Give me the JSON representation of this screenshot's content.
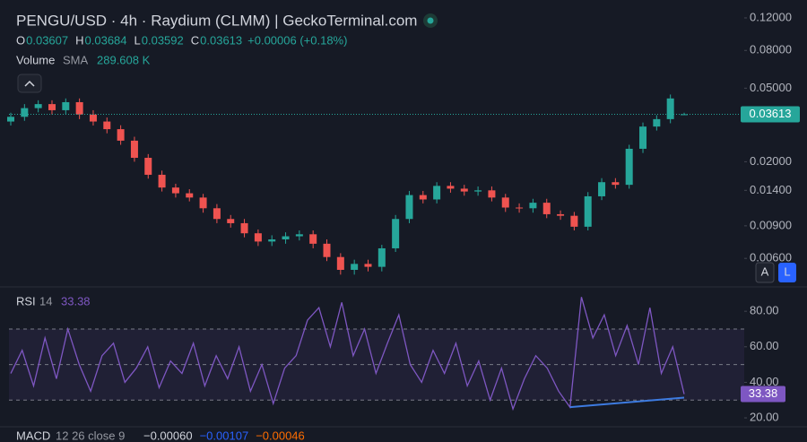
{
  "chart_data": [
    {
      "type": "candlestick",
      "title": "PENGU/USD · 4h · Raydium (CLMM) | GeckoTerminal.com",
      "legend_labels": [
        "O",
        "H",
        "L",
        "C"
      ],
      "change_label": "+0.00006 (+0.18%)",
      "volume": {
        "title": "Volume",
        "indicator": "SMA",
        "value_label": "289.608 K"
      },
      "open": [
        0.033,
        0.035,
        0.039,
        0.041,
        0.038,
        0.042,
        0.036,
        0.033,
        0.03,
        0.026,
        0.021,
        0.017,
        0.0145,
        0.0135,
        0.0128,
        0.0112,
        0.0098,
        0.0093,
        0.0082,
        0.0074,
        0.0076,
        0.0079,
        0.0081,
        0.0072,
        0.0061,
        0.0052,
        0.0056,
        0.0054,
        0.0068,
        0.0098,
        0.0132,
        0.0125,
        0.0148,
        0.0143,
        0.0138,
        0.014,
        0.0128,
        0.0113,
        0.0112,
        0.012,
        0.0104,
        0.0102,
        0.0089,
        0.013,
        0.0155,
        0.015,
        0.0235,
        0.031,
        0.034,
        0.03607
      ],
      "high": [
        0.0368,
        0.041,
        0.043,
        0.043,
        0.044,
        0.044,
        0.038,
        0.0347,
        0.0315,
        0.0273,
        0.022,
        0.0179,
        0.0152,
        0.0142,
        0.0134,
        0.0118,
        0.0103,
        0.0098,
        0.0086,
        0.008,
        0.0083,
        0.0085,
        0.0085,
        0.0076,
        0.0064,
        0.0059,
        0.0059,
        0.0071,
        0.0103,
        0.0139,
        0.0139,
        0.0155,
        0.0155,
        0.015,
        0.0147,
        0.0147,
        0.0134,
        0.0119,
        0.0126,
        0.0126,
        0.0109,
        0.0107,
        0.0137,
        0.0163,
        0.0163,
        0.0247,
        0.0326,
        0.0357,
        0.0462,
        0.03684
      ],
      "low": [
        0.0314,
        0.0333,
        0.037,
        0.036,
        0.036,
        0.034,
        0.0314,
        0.0285,
        0.0247,
        0.02,
        0.0162,
        0.0138,
        0.0128,
        0.0122,
        0.0106,
        0.0093,
        0.0088,
        0.0078,
        0.007,
        0.007,
        0.0072,
        0.0075,
        0.0068,
        0.0058,
        0.0049,
        0.0049,
        0.0051,
        0.0051,
        0.0065,
        0.0093,
        0.0119,
        0.0119,
        0.0136,
        0.0131,
        0.0131,
        0.0122,
        0.0107,
        0.0106,
        0.0106,
        0.0099,
        0.0097,
        0.0085,
        0.0085,
        0.0124,
        0.0143,
        0.0143,
        0.0223,
        0.0295,
        0.0323,
        0.03592
      ],
      "close": [
        0.035,
        0.039,
        0.041,
        0.038,
        0.042,
        0.036,
        0.033,
        0.03,
        0.026,
        0.021,
        0.017,
        0.0145,
        0.0135,
        0.0128,
        0.0112,
        0.0098,
        0.0093,
        0.0082,
        0.0074,
        0.0076,
        0.0079,
        0.0081,
        0.0072,
        0.0061,
        0.0052,
        0.0056,
        0.0054,
        0.0068,
        0.0098,
        0.0132,
        0.0125,
        0.0148,
        0.0143,
        0.0138,
        0.014,
        0.0128,
        0.0113,
        0.0112,
        0.012,
        0.0104,
        0.0102,
        0.0089,
        0.013,
        0.0155,
        0.015,
        0.0235,
        0.031,
        0.034,
        0.044,
        0.03613
      ],
      "up_color": "#26a69a",
      "down_color": "#ef5350",
      "log_scale": true,
      "last_price_line": true,
      "ylim": [
        0.0043,
        0.15
      ],
      "yticks": [
        {
          "value": 0.12,
          "label": "0.12000"
        },
        {
          "value": 0.08,
          "label": "0.08000"
        },
        {
          "value": 0.05,
          "label": "0.05000"
        },
        {
          "value": 0.02,
          "label": "0.02000"
        },
        {
          "value": 0.014,
          "label": "0.01400"
        },
        {
          "value": 0.009,
          "label": "0.00900"
        },
        {
          "value": 0.006,
          "label": "0.00600"
        }
      ]
    },
    {
      "type": "line",
      "title": "RSI",
      "params": "14",
      "color": "#7e57c2",
      "values": [
        45,
        58,
        38,
        65,
        42,
        70,
        50,
        35,
        55,
        62,
        40,
        48,
        60,
        37,
        52,
        45,
        62,
        38,
        55,
        42,
        60,
        35,
        50,
        28,
        48,
        55,
        75,
        82,
        60,
        85,
        55,
        70,
        45,
        62,
        78,
        50,
        40,
        58,
        45,
        62,
        38,
        52,
        30,
        48,
        25,
        42,
        55,
        48,
        35,
        26,
        88,
        65,
        78,
        55,
        72,
        50,
        82,
        45,
        60,
        33.38
      ],
      "ylim": [
        16,
        92.7
      ],
      "yticks": [
        {
          "value": 80,
          "label": "80.00"
        },
        {
          "value": 60,
          "label": "60.00"
        },
        {
          "value": 40,
          "label": "40.00"
        },
        {
          "value": 20,
          "label": "20.00"
        }
      ],
      "levels": [
        30,
        50,
        70
      ],
      "trendline": {
        "start_index": 49,
        "end_index": 59,
        "values": [
          26,
          31.4
        ],
        "color": "#3d7be0"
      }
    },
    {
      "type": "macd",
      "title": "MACD",
      "params": "12 26 close 9",
      "legend": [
        {
          "label": "−0.00060",
          "color": "#d1d4dc"
        },
        {
          "label": "−0.00107",
          "color": "#2962ff"
        },
        {
          "label": "−0.00046",
          "color": "#ff6d00"
        }
      ]
    }
  ],
  "controls": [
    "A",
    "L"
  ]
}
